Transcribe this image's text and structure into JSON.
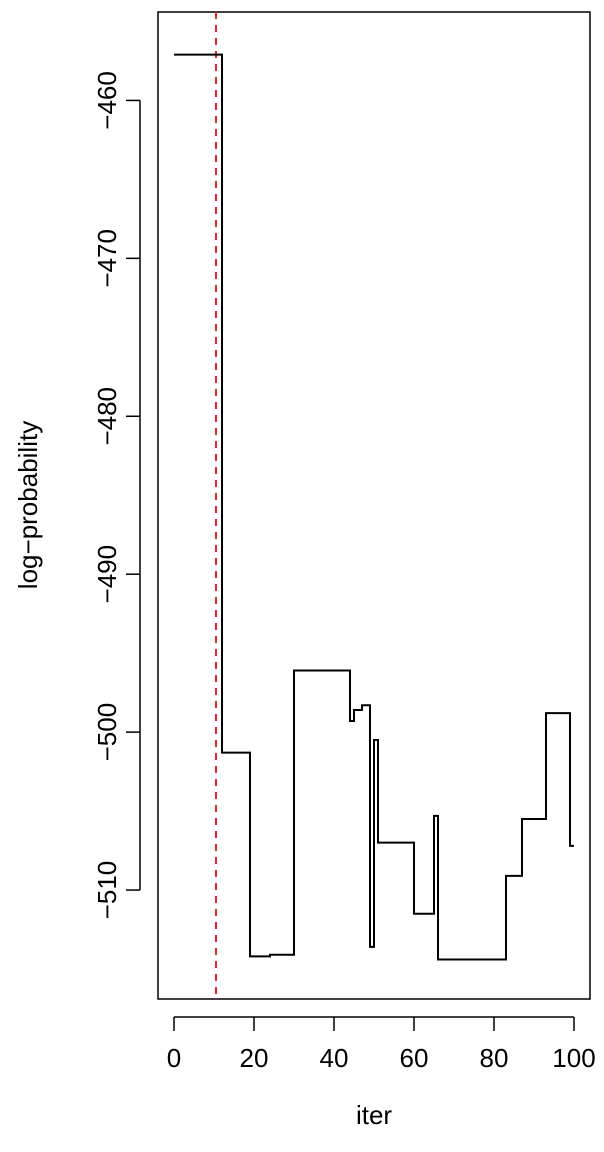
{
  "chart_data": {
    "type": "line",
    "title": "",
    "xlabel": "iter",
    "ylabel": "log−probability",
    "xlim": [
      -4,
      104
    ],
    "ylim": [
      -516.9,
      -454.4
    ],
    "xticks": [
      0,
      20,
      40,
      60,
      80,
      100
    ],
    "xtick_labels": [
      "0",
      "20",
      "40",
      "60",
      "80",
      "100"
    ],
    "yticks": [
      -460,
      -470,
      -480,
      -490,
      -500,
      -510
    ],
    "ytick_labels": [
      "−460",
      "−470",
      "−480",
      "−490",
      "−500",
      "−510"
    ],
    "grid": false,
    "series": [
      {
        "name": "",
        "color": "#000000",
        "x": [
          0,
          1,
          2,
          3,
          4,
          5,
          6,
          7,
          8,
          9,
          10,
          11,
          12,
          13,
          14,
          15,
          16,
          17,
          18,
          19,
          20,
          21,
          22,
          23,
          24,
          25,
          26,
          27,
          28,
          29,
          30,
          31,
          32,
          33,
          34,
          35,
          36,
          37,
          38,
          39,
          40,
          41,
          42,
          43,
          44,
          45,
          46,
          47,
          48,
          49,
          50,
          51,
          52,
          53,
          54,
          55,
          56,
          57,
          58,
          59,
          60,
          61,
          62,
          63,
          64,
          65,
          66,
          67,
          68,
          69,
          70,
          71,
          72,
          73,
          74,
          75,
          76,
          77,
          78,
          79,
          80,
          81,
          82,
          83,
          84,
          85,
          86,
          87,
          88,
          89,
          90,
          91,
          92,
          93,
          94,
          95,
          96,
          97,
          98,
          99,
          100
        ],
        "values": [
          -457.1,
          -457.1,
          -457.1,
          -457.1,
          -457.1,
          -457.1,
          -457.1,
          -457.1,
          -457.1,
          -457.1,
          -457.1,
          -457.1,
          -501.3,
          -501.3,
          -501.3,
          -501.3,
          -501.3,
          -501.3,
          -501.3,
          -514.2,
          -514.2,
          -514.2,
          -514.2,
          -514.2,
          -514.1,
          -514.1,
          -514.1,
          -514.1,
          -514.1,
          -514.1,
          -496.1,
          -496.1,
          -496.1,
          -496.1,
          -496.1,
          -496.1,
          -496.1,
          -496.1,
          -496.1,
          -496.1,
          -496.1,
          -496.1,
          -496.1,
          -496.1,
          -499.3,
          -498.6,
          -498.6,
          -498.3,
          -498.3,
          -513.6,
          -500.5,
          -507.0,
          -507.0,
          -507.0,
          -507.0,
          -507.0,
          -507.0,
          -507.0,
          -507.0,
          -507.0,
          -511.5,
          -511.5,
          -511.5,
          -511.5,
          -511.5,
          -505.3,
          -514.4,
          -514.4,
          -514.4,
          -514.4,
          -514.4,
          -514.4,
          -514.4,
          -514.4,
          -514.4,
          -514.4,
          -514.4,
          -514.4,
          -514.4,
          -514.4,
          -514.4,
          -514.4,
          -514.4,
          -509.1,
          -509.1,
          -509.1,
          -509.1,
          -505.5,
          -505.5,
          -505.5,
          -505.5,
          -505.5,
          -505.5,
          -498.8,
          -498.8,
          -498.8,
          -498.8,
          -498.8,
          -498.8,
          -507.2,
          -507.2
        ]
      }
    ],
    "reference_lines": [
      {
        "orientation": "vertical",
        "x": 10.5,
        "color": "#e8212e",
        "style": "dashed"
      }
    ]
  }
}
